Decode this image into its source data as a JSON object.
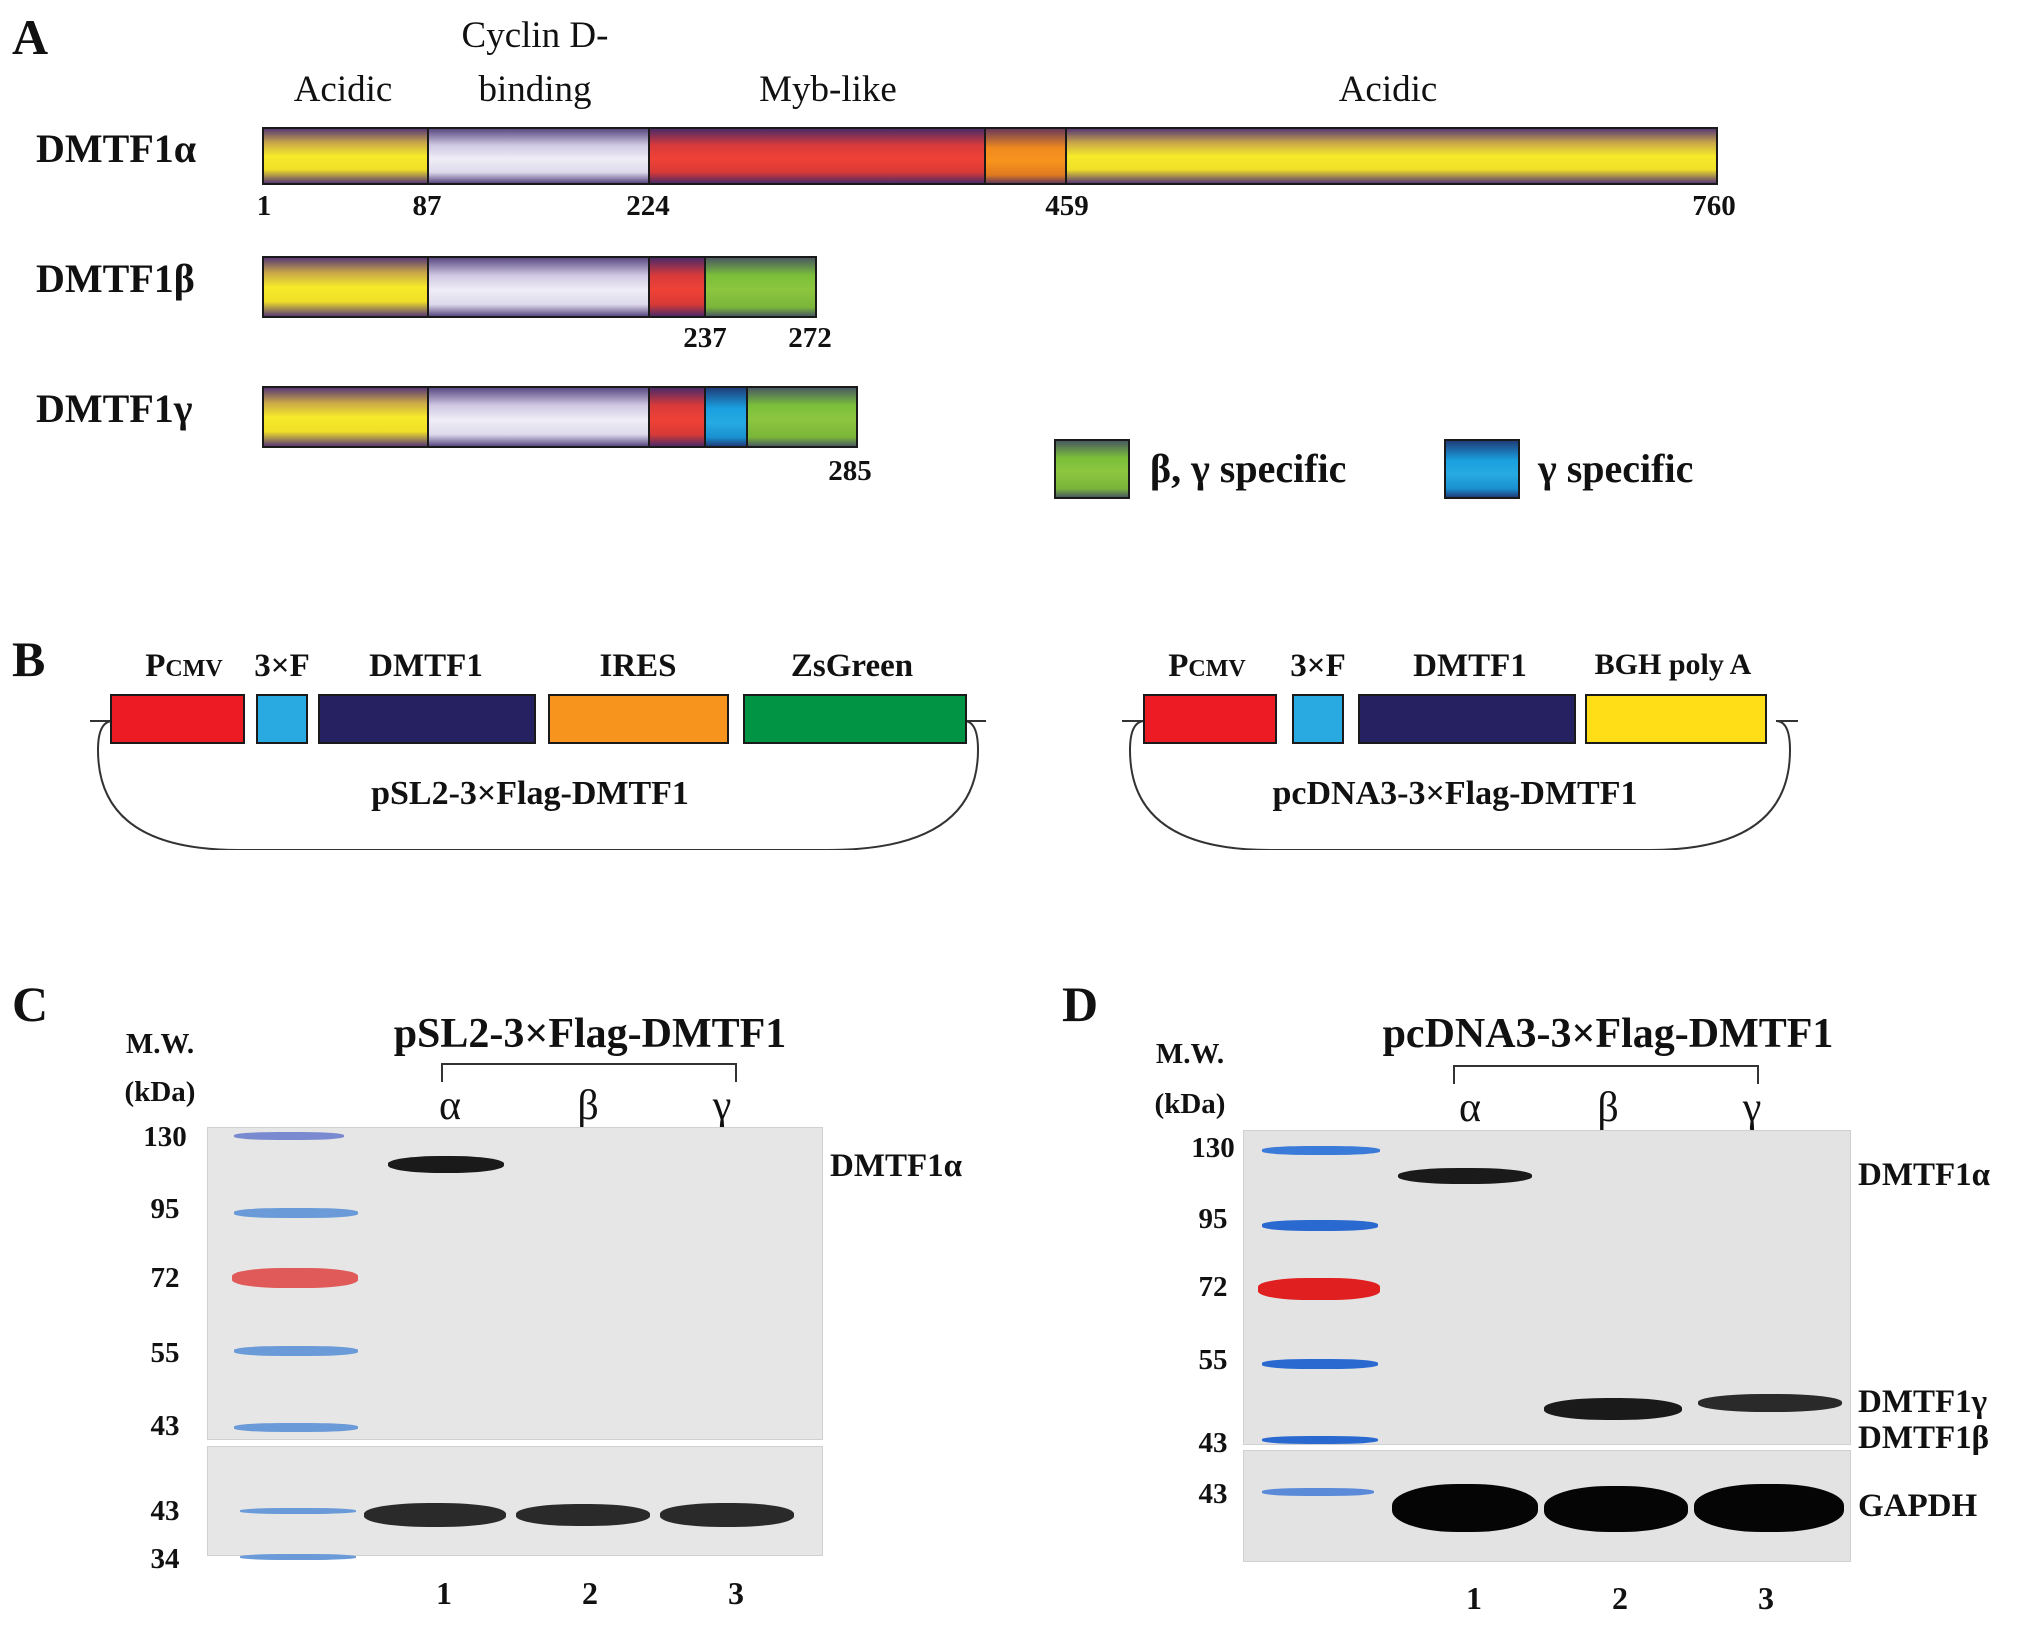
{
  "panel_a": {
    "letter": "A",
    "domain_labels": {
      "acidic_1": "Acidic",
      "cyclin_1": "Cyclin D-",
      "cyclin_2": "binding",
      "myb": "Myb-like",
      "acidic_2": "Acidic"
    },
    "isoforms": {
      "alpha": {
        "name": "DMTF1α",
        "positions": [
          "1",
          "87",
          "224",
          "459",
          "760"
        ]
      },
      "beta": {
        "name": "DMTF1β",
        "positions": [
          "237",
          "272"
        ]
      },
      "gamma": {
        "name": "DMTF1γ",
        "positions": [
          "285"
        ]
      }
    },
    "legend": {
      "green": "β, γ specific",
      "blue": "γ specific"
    },
    "colors": {
      "acidic": "#f6ea2a",
      "cyclin_binding": "#efedf6",
      "myb_like": "#ef4136",
      "orange_region": "#f7941d",
      "beta_gamma_specific": "#8cc63f",
      "gamma_specific": "#27aae1"
    }
  },
  "panel_b": {
    "letter": "B",
    "left_vector": {
      "name": "pSL2-3×Flag-DMTF1",
      "elements": [
        "P",
        "CMV",
        "3×F",
        "DMTF1",
        "IRES",
        "ZsGreen"
      ]
    },
    "right_vector": {
      "name": "pcDNA3-3×Flag-DMTF1",
      "elements": [
        "P",
        "CMV",
        "3×F",
        "DMTF1",
        "BGH poly A"
      ]
    },
    "colors": {
      "pcmv": "#ed1c24",
      "flag": "#29abe2",
      "dmtf1": "#262262",
      "ires": "#f7941d",
      "zsgreen": "#009444",
      "bgh": "#ffde17"
    }
  },
  "panel_c": {
    "letter": "C",
    "title": "pSL2-3×Flag-DMTF1",
    "mw_label_1": "M.W.",
    "mw_label_2": "(kDa)",
    "lanes": [
      "α",
      "β",
      "γ"
    ],
    "markers_top": [
      "130",
      "95",
      "72",
      "55",
      "43"
    ],
    "markers_bottom": [
      "43",
      "34"
    ],
    "band_labels": [
      "DMTF1α"
    ],
    "lane_numbers": [
      "1",
      "2",
      "3"
    ]
  },
  "panel_d": {
    "letter": "D",
    "title": "pcDNA3-3×Flag-DMTF1",
    "mw_label_1": "M.W.",
    "mw_label_2": "(kDa)",
    "lanes": [
      "α",
      "β",
      "γ"
    ],
    "markers_top": [
      "130",
      "95",
      "72",
      "55",
      "43"
    ],
    "markers_bottom": [
      "43"
    ],
    "band_labels": [
      "DMTF1α",
      "DMTF1γ",
      "DMTF1β",
      "GAPDH"
    ],
    "lane_numbers": [
      "1",
      "2",
      "3"
    ]
  }
}
